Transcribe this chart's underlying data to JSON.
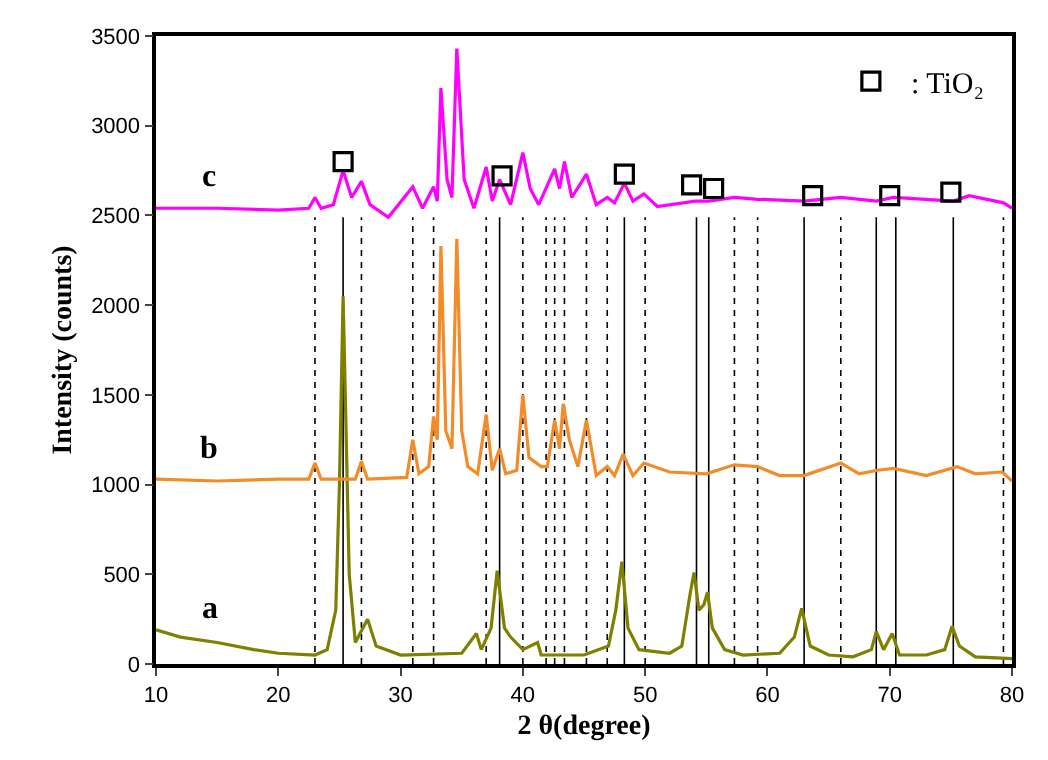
{
  "chart_data": {
    "type": "line",
    "xlabel": "2 θ(degree)",
    "ylabel": "Intensity (counts)",
    "xlim": [
      10,
      80
    ],
    "xticks": [
      10,
      20,
      30,
      40,
      50,
      60,
      70,
      80
    ],
    "ylim": [
      0,
      3500
    ],
    "yticks": [
      0,
      500,
      1000,
      1500,
      2000,
      2500,
      3000,
      3500
    ],
    "grid": false,
    "legend": "top right",
    "series": [
      {
        "name": "a",
        "color": "#7f7f00",
        "line_style": "solid",
        "x": [
          10,
          12,
          15,
          18,
          20,
          23,
          24,
          24.7,
          25.0,
          25.3,
          25.8,
          26.3,
          27.3,
          28,
          30,
          35,
          36.2,
          36.6,
          37.4,
          37.9,
          38.5,
          39,
          40,
          41.2,
          41.5,
          45,
          47,
          47.6,
          48.1,
          48.6,
          49.5,
          52,
          53,
          53.7,
          54.0,
          54.4,
          54.8,
          55.1,
          55.5,
          56.5,
          58,
          61,
          62.2,
          62.8,
          63.5,
          65,
          67,
          68.5,
          68.9,
          69.5,
          70.2,
          70.8,
          73,
          74.5,
          75.1,
          75.7,
          77,
          80
        ],
        "values": [
          190,
          150,
          120,
          80,
          60,
          50,
          80,
          300,
          1000,
          2050,
          500,
          120,
          250,
          100,
          50,
          60,
          170,
          80,
          200,
          520,
          200,
          150,
          80,
          120,
          50,
          50,
          100,
          300,
          570,
          200,
          80,
          60,
          100,
          400,
          510,
          300,
          330,
          400,
          200,
          80,
          50,
          60,
          150,
          310,
          100,
          50,
          40,
          80,
          180,
          80,
          170,
          50,
          50,
          80,
          210,
          100,
          40,
          30
        ]
      },
      {
        "name": "b",
        "color": "#f28c28",
        "line_style": "solid",
        "x": [
          10,
          15,
          20,
          22.5,
          23.0,
          23.5,
          26.3,
          26.8,
          27.3,
          30.5,
          31.0,
          31.5,
          32.3,
          32.7,
          33.0,
          33.3,
          33.7,
          34.2,
          34.6,
          35.0,
          35.5,
          36.3,
          37.0,
          37.5,
          38.1,
          38.6,
          39.5,
          40.0,
          40.5,
          41.5,
          42.0,
          42.6,
          43.0,
          43.3,
          43.8,
          44.5,
          45.2,
          46.0,
          46.9,
          47.5,
          48.2,
          49.0,
          49.9,
          52,
          55,
          57.3,
          59.2,
          61,
          63,
          66,
          67.5,
          69,
          70.3,
          73,
          75.5,
          77,
          79.2,
          80
        ],
        "values": [
          1030,
          1020,
          1030,
          1030,
          1120,
          1030,
          1030,
          1130,
          1030,
          1040,
          1250,
          1060,
          1100,
          1380,
          1250,
          2330,
          1300,
          1200,
          2370,
          1300,
          1100,
          1060,
          1390,
          1080,
          1200,
          1060,
          1080,
          1500,
          1150,
          1100,
          1100,
          1360,
          1200,
          1450,
          1250,
          1100,
          1360,
          1050,
          1100,
          1050,
          1170,
          1050,
          1120,
          1070,
          1060,
          1110,
          1100,
          1050,
          1050,
          1120,
          1060,
          1080,
          1090,
          1050,
          1100,
          1060,
          1070,
          1020
        ]
      },
      {
        "name": "c",
        "color": "#ff00ff",
        "line_style": "solid",
        "x": [
          10,
          15,
          20,
          22.5,
          23.0,
          23.5,
          24.5,
          25.3,
          26.0,
          26.8,
          27.5,
          29,
          31.0,
          31.8,
          32.7,
          33.0,
          33.3,
          33.8,
          34.2,
          34.6,
          35.2,
          36,
          37.0,
          37.5,
          38.1,
          39,
          40.0,
          40.6,
          41.3,
          42.6,
          43.0,
          43.4,
          44,
          45.2,
          46,
          46.9,
          47.5,
          48.3,
          49.0,
          49.9,
          51,
          54.1,
          55.2,
          57.3,
          59.2,
          63,
          66,
          68.9,
          70.3,
          75.2,
          76.5,
          79.3,
          80
        ],
        "values": [
          2540,
          2540,
          2530,
          2540,
          2600,
          2540,
          2560,
          2750,
          2600,
          2690,
          2560,
          2490,
          2660,
          2540,
          2660,
          2580,
          3210,
          2700,
          2600,
          3430,
          2700,
          2540,
          2770,
          2580,
          2700,
          2560,
          2850,
          2650,
          2560,
          2760,
          2650,
          2800,
          2600,
          2730,
          2560,
          2600,
          2570,
          2680,
          2580,
          2620,
          2550,
          2580,
          2580,
          2600,
          2590,
          2580,
          2600,
          2580,
          2600,
          2580,
          2610,
          2570,
          2540
        ]
      },
      {
        "name": ": TiO₂",
        "type": "scatter",
        "marker": "square",
        "color": "#000000",
        "x": [
          25.3,
          38.3,
          48.3,
          53.8,
          55.6,
          63.7,
          70.0,
          75.0
        ],
        "values": [
          2800,
          2720,
          2730,
          2670,
          2650,
          2610,
          2610,
          2630
        ]
      }
    ],
    "ref_lines": [
      {
        "axis": "x",
        "value": 23.0,
        "color": "#000000",
        "line_style": "dotted"
      },
      {
        "axis": "x",
        "value": 25.3,
        "color": "#000000",
        "line_style": "solid"
      },
      {
        "axis": "x",
        "value": 26.8,
        "color": "#000000",
        "line_style": "dotted"
      },
      {
        "axis": "x",
        "value": 31.0,
        "color": "#000000",
        "line_style": "dotted"
      },
      {
        "axis": "x",
        "value": 32.7,
        "color": "#000000",
        "line_style": "dotted"
      },
      {
        "axis": "x",
        "value": 37.0,
        "color": "#000000",
        "line_style": "dotted"
      },
      {
        "axis": "x",
        "value": 38.1,
        "color": "#000000",
        "line_style": "solid"
      },
      {
        "axis": "x",
        "value": 40.0,
        "color": "#000000",
        "line_style": "dotted"
      },
      {
        "axis": "x",
        "value": 41.9,
        "color": "#000000",
        "line_style": "dotted"
      },
      {
        "axis": "x",
        "value": 42.6,
        "color": "#000000",
        "line_style": "dotted"
      },
      {
        "axis": "x",
        "value": 43.4,
        "color": "#000000",
        "line_style": "dotted"
      },
      {
        "axis": "x",
        "value": 45.2,
        "color": "#000000",
        "line_style": "dotted"
      },
      {
        "axis": "x",
        "value": 46.9,
        "color": "#000000",
        "line_style": "dotted"
      },
      {
        "axis": "x",
        "value": 48.3,
        "color": "#000000",
        "line_style": "solid"
      },
      {
        "axis": "x",
        "value": 50.0,
        "color": "#000000",
        "line_style": "dotted"
      },
      {
        "axis": "x",
        "value": 54.2,
        "color": "#000000",
        "line_style": "solid"
      },
      {
        "axis": "x",
        "value": 55.2,
        "color": "#000000",
        "line_style": "solid"
      },
      {
        "axis": "x",
        "value": 57.3,
        "color": "#000000",
        "line_style": "dotted"
      },
      {
        "axis": "x",
        "value": 59.2,
        "color": "#000000",
        "line_style": "dotted"
      },
      {
        "axis": "x",
        "value": 63.0,
        "color": "#000000",
        "line_style": "solid"
      },
      {
        "axis": "x",
        "value": 66.0,
        "color": "#000000",
        "line_style": "dotted"
      },
      {
        "axis": "x",
        "value": 68.9,
        "color": "#000000",
        "line_style": "solid"
      },
      {
        "axis": "x",
        "value": 70.5,
        "color": "#000000",
        "line_style": "solid"
      },
      {
        "axis": "x",
        "value": 75.2,
        "color": "#000000",
        "line_style": "solid"
      },
      {
        "axis": "x",
        "value": 79.3,
        "color": "#000000",
        "line_style": "dotted"
      }
    ]
  }
}
